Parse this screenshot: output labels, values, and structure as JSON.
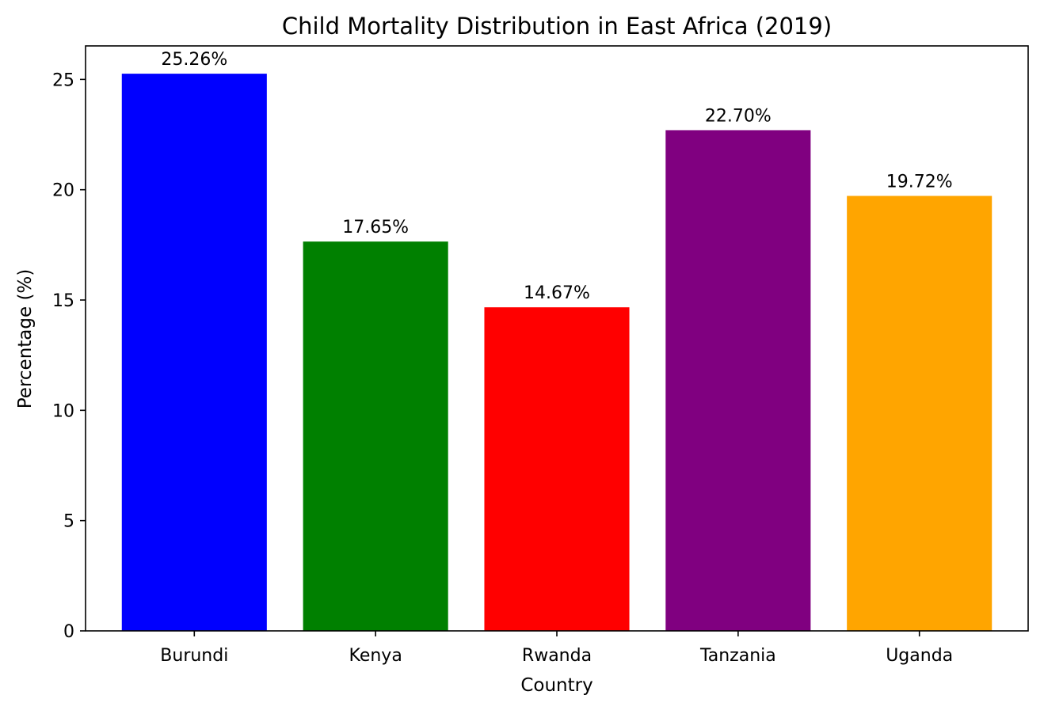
{
  "chart_data": {
    "type": "bar",
    "title": "Child Mortality Distribution in East Africa (2019)",
    "xlabel": "Country",
    "ylabel": "Percentage (%)",
    "categories": [
      "Burundi",
      "Kenya",
      "Rwanda",
      "Tanzania",
      "Uganda"
    ],
    "values": [
      25.26,
      17.65,
      14.67,
      22.7,
      19.72
    ],
    "data_labels": [
      "25.26%",
      "17.65%",
      "14.67%",
      "22.70%",
      "19.72%"
    ],
    "colors": [
      "#0000ff",
      "#008000",
      "#ff0000",
      "#800080",
      "#ffa500"
    ],
    "ylim": [
      0,
      26.52
    ],
    "yticks": [
      0,
      5,
      10,
      15,
      20,
      25
    ],
    "grid": false,
    "legend": "none"
  }
}
